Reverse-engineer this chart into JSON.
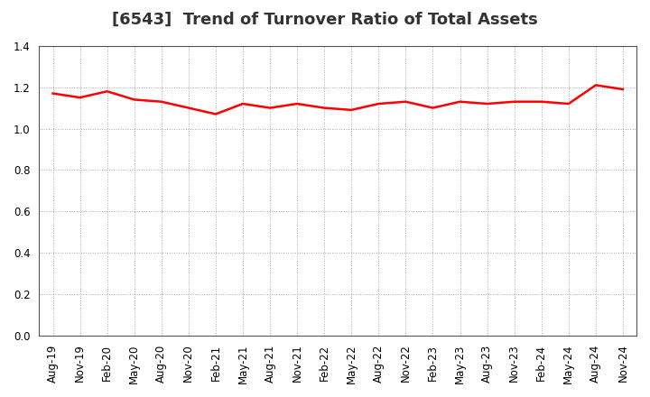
{
  "title": "[6543]  Trend of Turnover Ratio of Total Assets",
  "x_labels": [
    "Aug-19",
    "Nov-19",
    "Feb-20",
    "May-20",
    "Aug-20",
    "Nov-20",
    "Feb-21",
    "May-21",
    "Aug-21",
    "Nov-21",
    "Feb-22",
    "May-22",
    "Aug-22",
    "Nov-22",
    "Feb-23",
    "May-23",
    "Aug-23",
    "Nov-23",
    "Feb-24",
    "May-24",
    "Aug-24",
    "Nov-24"
  ],
  "values": [
    1.17,
    1.15,
    1.18,
    1.14,
    1.13,
    1.1,
    1.07,
    1.12,
    1.1,
    1.12,
    1.1,
    1.09,
    1.12,
    1.13,
    1.1,
    1.13,
    1.12,
    1.13,
    1.13,
    1.12,
    1.21,
    1.19
  ],
  "line_color": "#ff0000",
  "line_width": 1.8,
  "ylim": [
    0.0,
    1.4
  ],
  "yticks": [
    0.0,
    0.2,
    0.4,
    0.6,
    0.8,
    1.0,
    1.2,
    1.4
  ],
  "background_color": "#ffffff",
  "grid_color": "#aaaaaa",
  "title_fontsize": 13,
  "tick_fontsize": 8.5
}
